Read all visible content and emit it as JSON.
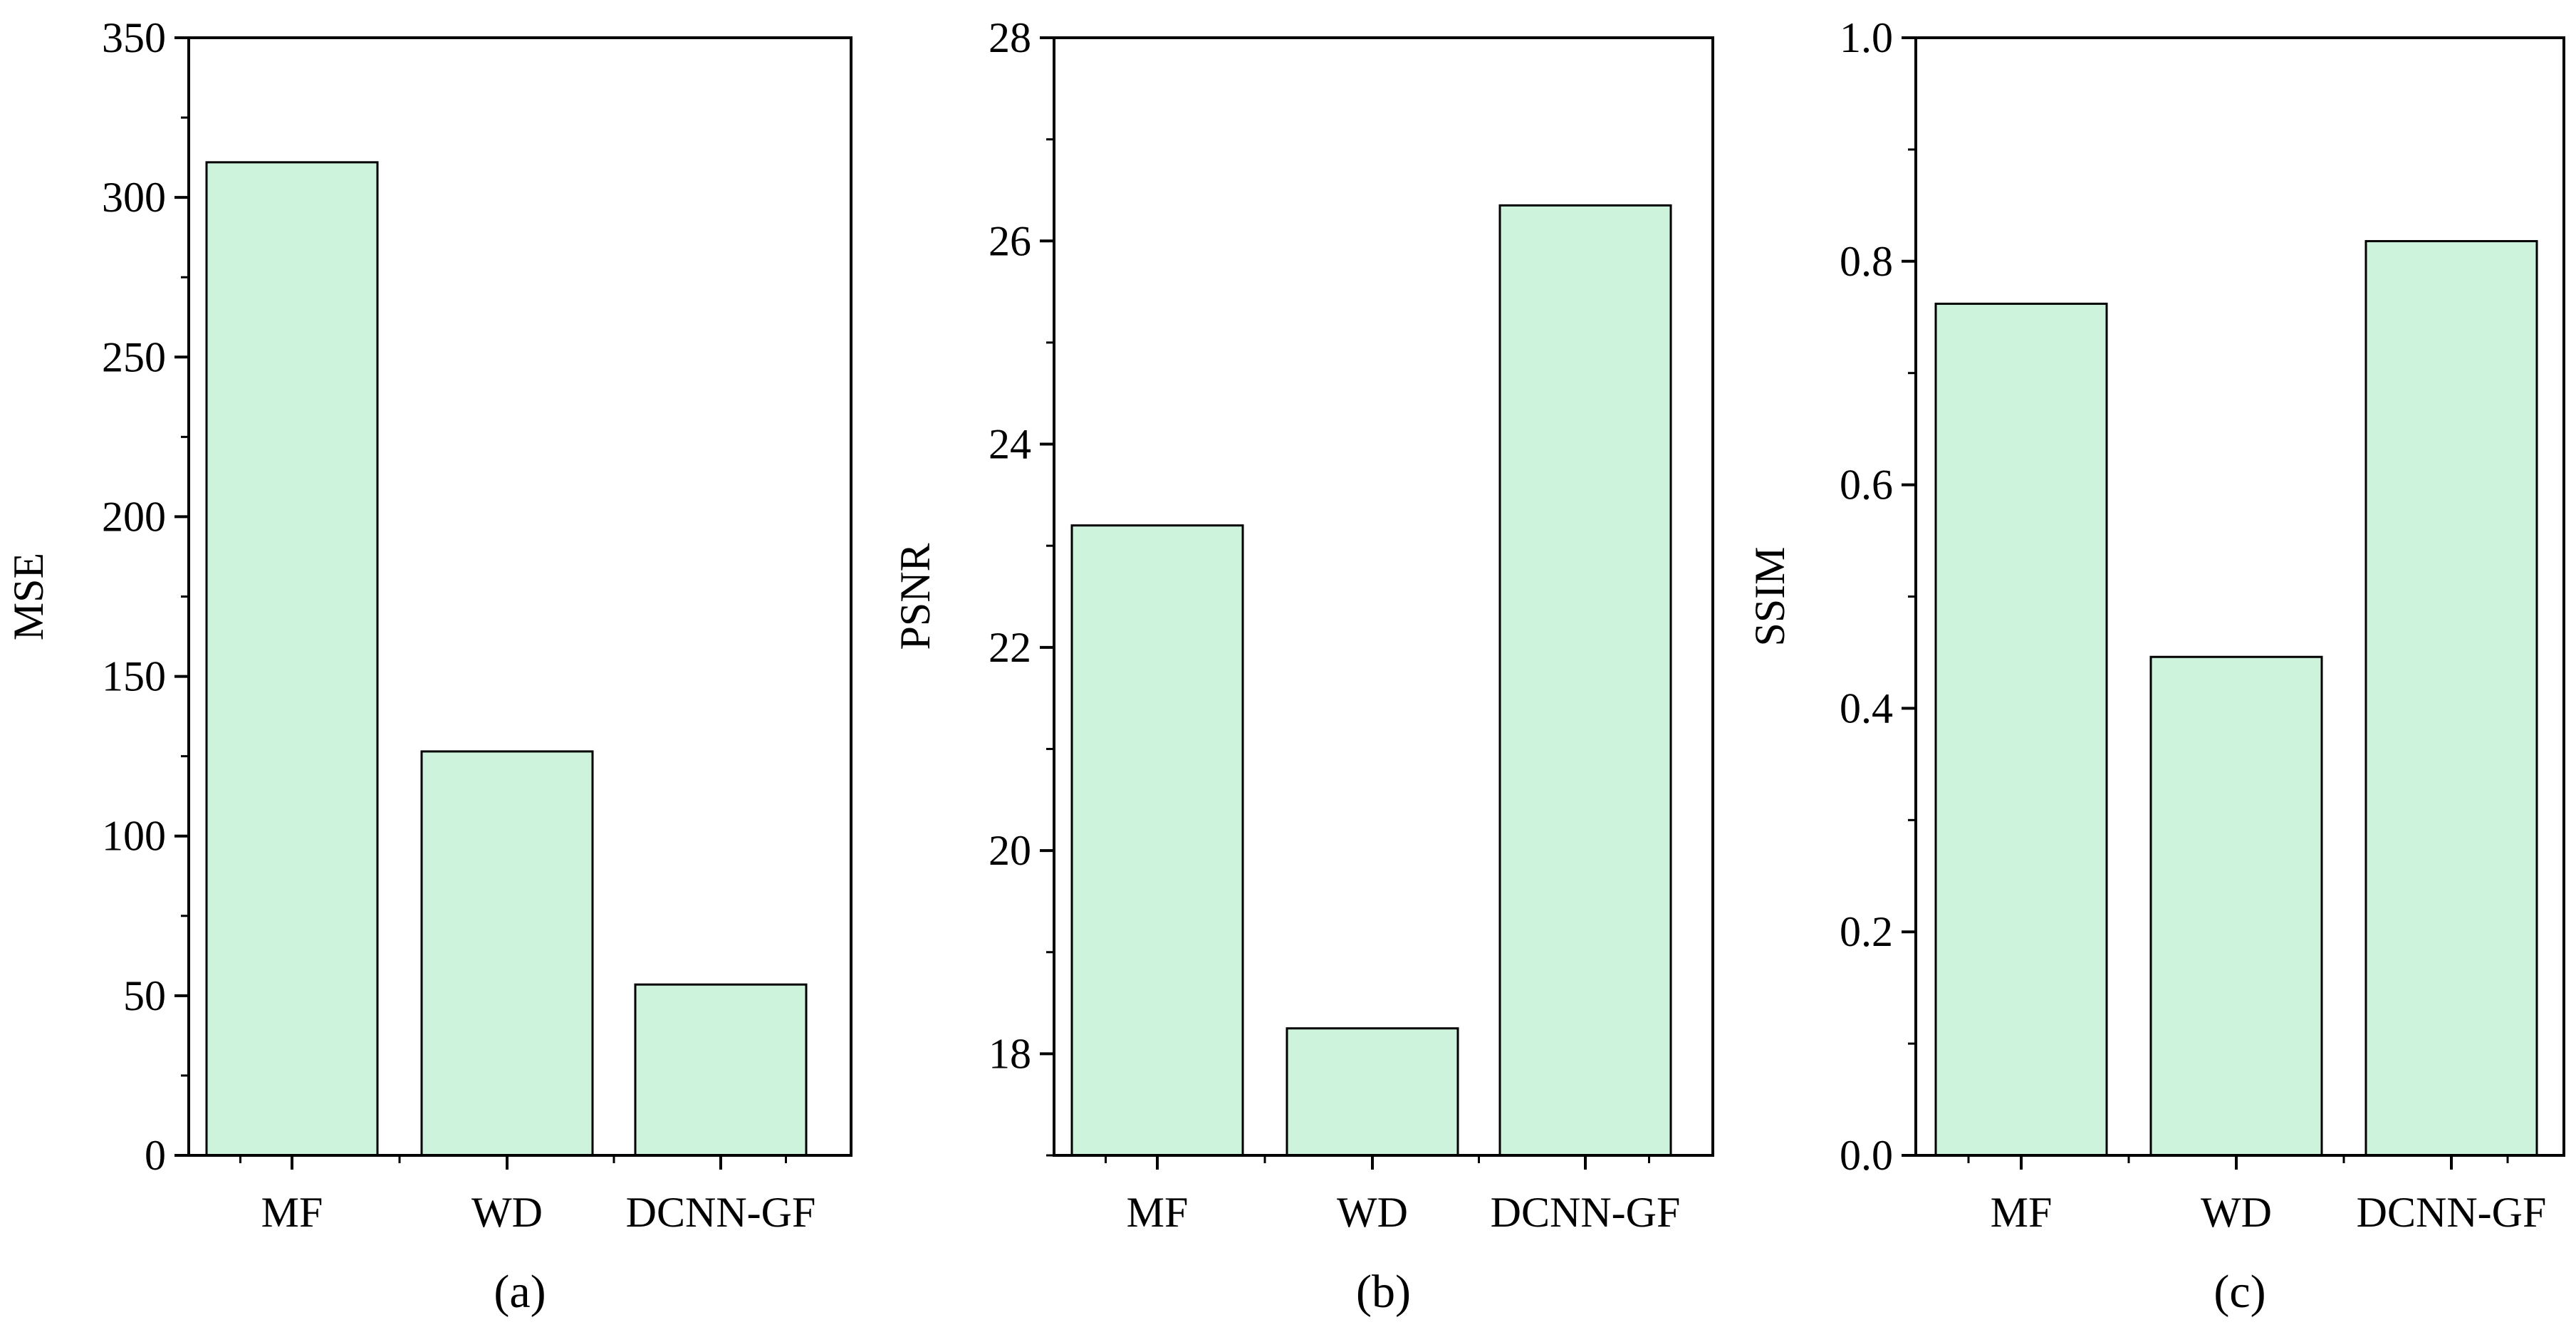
{
  "colors": {
    "bar_fill": "#cdf3dc",
    "bar_stroke": "#000000",
    "axis": "#000000"
  },
  "chart_data": [
    {
      "type": "bar",
      "panel_label": "(a)",
      "categories": [
        "MF",
        "WD",
        "DCNN-GF"
      ],
      "values": [
        311,
        126.5,
        53.5
      ],
      "xlabel": "",
      "ylabel": "MSE",
      "ylim": [
        0,
        350
      ],
      "yticks": [
        0,
        50,
        100,
        150,
        200,
        250,
        300,
        350
      ],
      "ytick_labels": [
        "0",
        "50",
        "100",
        "150",
        "200",
        "250",
        "300",
        "350"
      ],
      "grid": false
    },
    {
      "type": "bar",
      "panel_label": "(b)",
      "categories": [
        "MF",
        "WD",
        "DCNN-GF"
      ],
      "values": [
        23.2,
        18.25,
        26.35
      ],
      "xlabel": "",
      "ylabel": "PSNR",
      "ylim": [
        17,
        28
      ],
      "yticks": [
        18,
        20,
        22,
        24,
        26,
        28
      ],
      "ytick_labels": [
        "18",
        "20",
        "22",
        "24",
        "26",
        "28"
      ],
      "grid": false
    },
    {
      "type": "bar",
      "panel_label": "(c)",
      "categories": [
        "MF",
        "WD",
        "DCNN-GF"
      ],
      "values": [
        0.762,
        0.446,
        0.818
      ],
      "xlabel": "",
      "ylabel": "SSIM",
      "ylim": [
        0,
        1.0
      ],
      "yticks": [
        0,
        0.2,
        0.4,
        0.6,
        0.8,
        1.0
      ],
      "ytick_labels": [
        "0.0",
        "0.2",
        "0.4",
        "0.6",
        "0.8",
        "1.0"
      ],
      "grid": false
    }
  ]
}
